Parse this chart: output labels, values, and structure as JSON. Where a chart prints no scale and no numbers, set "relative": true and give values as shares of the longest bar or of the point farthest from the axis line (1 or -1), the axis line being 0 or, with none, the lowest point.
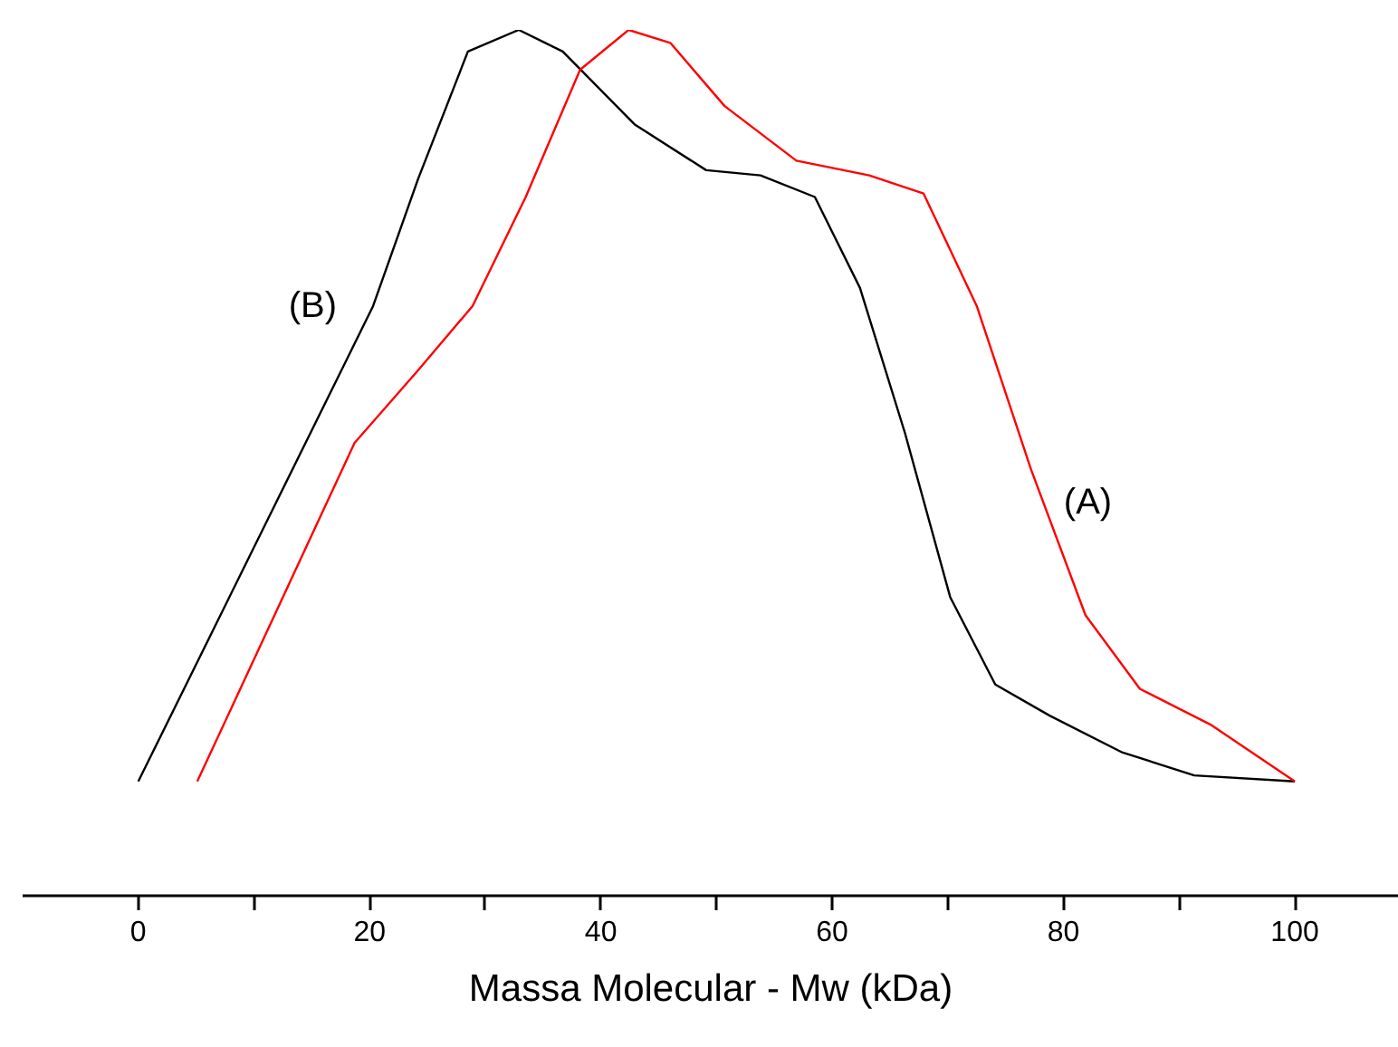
{
  "chart_data": {
    "type": "line",
    "relative": true,
    "xlabel": "Massa Molecular - Mw (kDa)",
    "xlim": [
      -10,
      109
    ],
    "xticks": [
      0,
      {
        "value": 10,
        "label": null
      },
      20,
      {
        "value": 30,
        "label": null
      },
      40,
      {
        "value": 50,
        "label": null
      },
      60,
      {
        "value": 70,
        "label": null
      },
      80,
      {
        "value": 90,
        "label": null
      },
      100
    ],
    "grid": false,
    "marker": "none",
    "line_style": "solid",
    "series": [
      {
        "name": "(B)",
        "color": "#000000",
        "x": [
          0,
          17.2,
          20.3,
          24.2,
          28.5,
          32.9,
          36.7,
          42.9,
          49.1,
          53.8,
          58.5,
          62.4,
          66.3,
          70.2,
          74.1,
          78.8,
          85.0,
          91.3,
          100
        ],
        "values": [
          0.132,
          0.597,
          0.681,
          0.828,
          0.975,
          1.0,
          0.975,
          0.891,
          0.838,
          0.832,
          0.807,
          0.702,
          0.534,
          0.345,
          0.244,
          0.208,
          0.166,
          0.139,
          0.132
        ]
      },
      {
        "name": "(A)",
        "color": "#ff0000",
        "x": [
          5.1,
          18.7,
          24.2,
          28.9,
          33.5,
          38.2,
          42.4,
          46.0,
          50.7,
          56.9,
          63.2,
          67.9,
          72.5,
          77.2,
          81.9,
          86.6,
          92.8,
          100
        ],
        "values": [
          0.132,
          0.523,
          0.607,
          0.681,
          0.807,
          0.954,
          1.0,
          0.985,
          0.912,
          0.849,
          0.832,
          0.811,
          0.681,
          0.492,
          0.324,
          0.239,
          0.197,
          0.132
        ]
      }
    ]
  }
}
